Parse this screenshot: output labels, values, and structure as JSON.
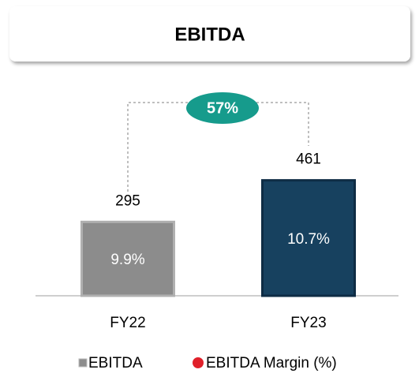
{
  "chart_data": {
    "type": "bar",
    "title": "EBITDA",
    "categories": [
      "FY22",
      "FY23"
    ],
    "series": [
      {
        "name": "EBITDA",
        "color": "#8c8c8c",
        "bar_colors": [
          "#8c8c8c",
          "#17415f"
        ],
        "values": [
          295,
          461
        ]
      },
      {
        "name": "EBITDA Margin (%)",
        "color": "#e0202a",
        "values": [
          9.9,
          10.7
        ],
        "value_labels": [
          "9.9%",
          "10.7%"
        ]
      }
    ],
    "annotation": "57%",
    "ylim": [
      0,
      800
    ]
  }
}
